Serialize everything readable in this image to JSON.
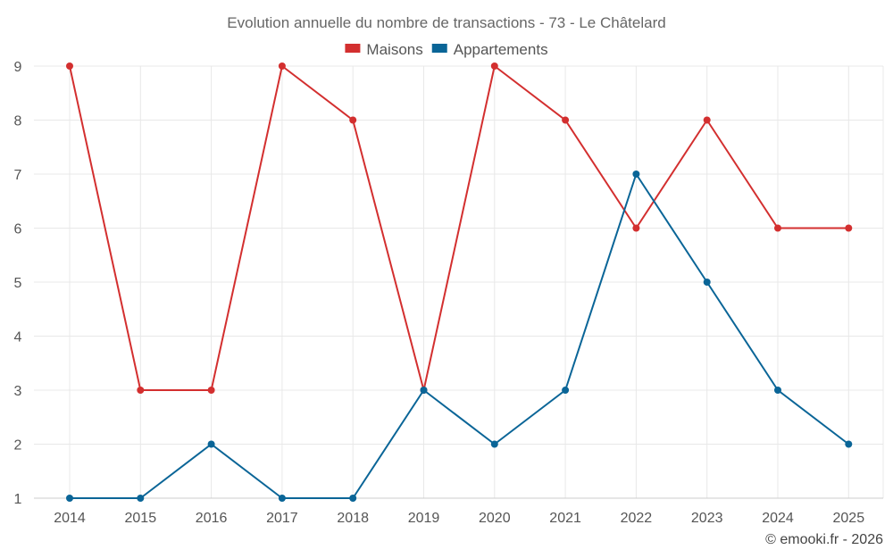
{
  "chart_data": {
    "type": "line",
    "title": "Evolution annuelle du nombre de transactions - 73 - Le Châtelard",
    "categories": [
      "2014",
      "2015",
      "2016",
      "2017",
      "2018",
      "2019",
      "2020",
      "2021",
      "2022",
      "2023",
      "2024",
      "2025"
    ],
    "series": [
      {
        "name": "Maisons",
        "color": "#d32f2f",
        "values": [
          9,
          3,
          3,
          9,
          8,
          3,
          9,
          8,
          6,
          8,
          6,
          6
        ]
      },
      {
        "name": "Appartements",
        "color": "#0a6597",
        "values": [
          1,
          1,
          2,
          1,
          1,
          3,
          2,
          3,
          7,
          5,
          3,
          2
        ]
      }
    ],
    "ylim": [
      1,
      9
    ],
    "yticks": [
      "1",
      "2",
      "3",
      "4",
      "5",
      "6",
      "7",
      "8",
      "9"
    ],
    "xlabel": "",
    "ylabel": "",
    "grid": true,
    "legend_position": "top-center"
  },
  "credit": "© emooki.fr - 2026"
}
